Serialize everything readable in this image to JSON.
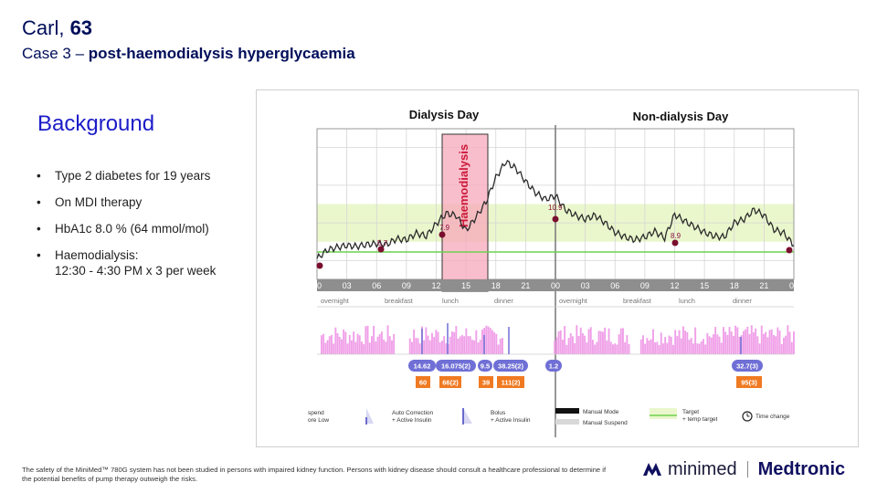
{
  "title": {
    "name": "Carl, ",
    "age": "63",
    "case_prefix": "Case 3 – ",
    "case_title": "post-haemodialysis hyperglycaemia"
  },
  "background": {
    "heading": "Background",
    "bullets": [
      "Type 2 diabetes for 19 years",
      "On MDI therapy",
      "HbA1c 8.0 % (64 mmol/mol)",
      "Haemodialysis:"
    ],
    "dialysis_schedule": "12:30 - 4:30 PM x 3 per week"
  },
  "chart": {
    "day1_title": "Dialysis Day",
    "day2_title": "Non-dialysis Day",
    "haemo_label": "Haemodialysis",
    "time_ticks_day1": [
      "00",
      "03",
      "06",
      "09",
      "12",
      "15",
      "18",
      "21"
    ],
    "time_ticks_day2": [
      "00",
      "03",
      "06",
      "09",
      "12",
      "15",
      "18",
      "21",
      "00"
    ],
    "meals_day1": [
      "overnight",
      "breakfast",
      "lunch",
      "dinner"
    ],
    "meals_day2": [
      "overnight",
      "breakfast",
      "lunch",
      "dinner"
    ],
    "sg_markers": [
      "5.7",
      "7.9",
      "10.9",
      "8.9"
    ],
    "bolus_blue": [
      "14.62",
      "16.075(2)",
      "9.5",
      "38.25(2)",
      "1.2",
      "32.7(3)"
    ],
    "carbs_orange": [
      "60",
      "66(2)",
      "39",
      "111(2)",
      "95(3)"
    ],
    "legend": {
      "suspend_1": "spend",
      "suspend_2": "ore Low",
      "autocorr_1": "Auto Correction",
      "autocorr_2": "+ Active Insulin",
      "bolus_1": "Bolus",
      "bolus_2": "+ Active Insulin",
      "manual_mode": "Manual Mode",
      "manual_suspend": "Manual Suspend",
      "target_1": "Target",
      "target_2": "+ temp target",
      "time_change": "Time change"
    },
    "colors": {
      "target_band": "#eaf7cc",
      "target_line": "#6fd04e",
      "haemo_fill": "#f7a8bb",
      "haemo_text": "#cc1a3a",
      "basal": "#f0a0e8",
      "bolus_marker": "#6f6fd6",
      "carb_marker": "#f07a22"
    }
  },
  "chart_data": {
    "type": "line",
    "title": "",
    "xlabel": "",
    "ylabel": "",
    "x_hours": [
      0,
      1,
      2,
      3,
      4,
      5,
      6,
      7,
      8,
      9,
      10,
      11,
      12,
      13,
      14,
      15,
      16,
      17,
      18,
      19,
      20,
      21,
      22,
      23,
      24,
      25,
      26,
      27,
      28,
      29,
      30,
      31,
      32,
      33,
      34,
      35,
      36,
      37,
      38,
      39,
      40,
      41,
      42,
      43,
      44,
      45,
      46,
      47,
      48
    ],
    "series": [
      {
        "values": [
          4.2,
          5.1,
          5.4,
          5.6,
          5.5,
          5.7,
          5.8,
          5.7,
          6.3,
          6.2,
          6.9,
          6.6,
          7.9,
          9.0,
          8.8,
          7.2,
          8.6,
          10.2,
          12.8,
          14.5,
          13.8,
          12.4,
          11.2,
          10.5,
          10.9,
          9.4,
          8.8,
          8.4,
          8.8,
          8.0,
          7.0,
          6.5,
          6.2,
          6.5,
          7.1,
          6.4,
          8.9,
          8.2,
          7.6,
          7.0,
          6.6,
          6.5,
          8.0,
          8.4,
          9.4,
          8.8,
          7.3,
          6.9,
          5.6
        ]
      }
    ],
    "ylim": [
      2,
      18
    ],
    "target_range": [
      6,
      10
    ],
    "haemodialysis_hours": [
      12.5,
      16.5
    ]
  },
  "footer": {
    "disclaimer": "The safety of the MiniMed™ 780G system has not been studied in persons with impaired kidney function. Persons with kidney disease should consult a healthcare professional to determine if the potential benefits of pump therapy outweigh the risks.",
    "logo_minimed": "minimed",
    "logo_medtronic": "Medtronic"
  }
}
